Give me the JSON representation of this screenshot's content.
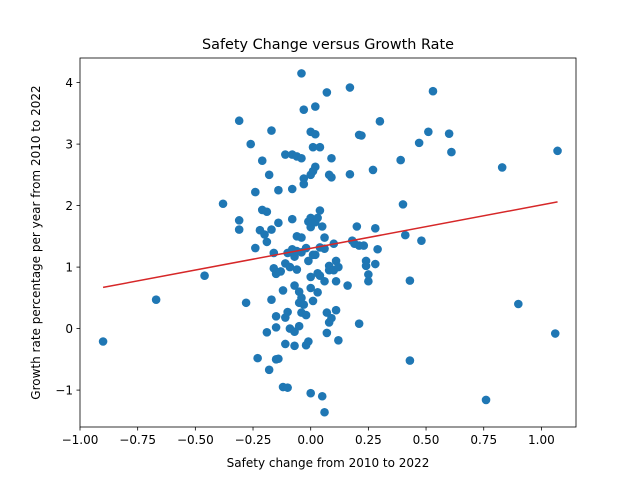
{
  "chart_data": {
    "type": "scatter",
    "title": "Safety Change versus Growth Rate",
    "xlabel": "Safety change from 2010 to 2022",
    "ylabel": "Growth rate percentage per year from 2010 to 2022",
    "xlim": [
      -1.0,
      1.15
    ],
    "ylim": [
      -1.6,
      4.4
    ],
    "xticks": [
      -1.0,
      -0.75,
      -0.5,
      -0.25,
      0.0,
      0.25,
      0.5,
      0.75,
      1.0
    ],
    "xtick_labels": [
      "−1.00",
      "−0.75",
      "−0.50",
      "−0.25",
      "0.00",
      "0.25",
      "0.50",
      "0.75",
      "1.00"
    ],
    "yticks": [
      -1,
      0,
      1,
      2,
      3,
      4
    ],
    "ytick_labels": [
      "−1",
      "0",
      "1",
      "2",
      "3",
      "4"
    ],
    "grid": false,
    "point_color": "#1f77b4",
    "trend_color": "#d62728",
    "trendline": {
      "x": [
        -0.9,
        1.07
      ],
      "y": [
        0.67,
        2.06
      ]
    },
    "points": [
      [
        -0.9,
        -0.21
      ],
      [
        -0.67,
        0.47
      ],
      [
        -0.46,
        0.86
      ],
      [
        -0.38,
        2.03
      ],
      [
        -0.31,
        3.38
      ],
      [
        -0.31,
        1.76
      ],
      [
        -0.31,
        1.61
      ],
      [
        -0.28,
        0.42
      ],
      [
        -0.26,
        3.0
      ],
      [
        -0.24,
        2.22
      ],
      [
        -0.24,
        1.31
      ],
      [
        -0.23,
        -0.48
      ],
      [
        -0.22,
        1.6
      ],
      [
        -0.21,
        2.73
      ],
      [
        -0.21,
        1.93
      ],
      [
        -0.2,
        1.53
      ],
      [
        -0.19,
        1.9
      ],
      [
        -0.19,
        1.41
      ],
      [
        -0.19,
        -0.06
      ],
      [
        -0.18,
        -0.67
      ],
      [
        -0.18,
        2.5
      ],
      [
        -0.17,
        3.22
      ],
      [
        -0.17,
        1.61
      ],
      [
        -0.17,
        0.47
      ],
      [
        -0.16,
        1.23
      ],
      [
        -0.16,
        0.98
      ],
      [
        -0.15,
        0.89
      ],
      [
        -0.15,
        0.2
      ],
      [
        -0.15,
        0.02
      ],
      [
        -0.15,
        -0.5
      ],
      [
        -0.14,
        1.72
      ],
      [
        -0.14,
        2.25
      ],
      [
        -0.14,
        -0.49
      ],
      [
        -0.13,
        0.93
      ],
      [
        -0.12,
        0.62
      ],
      [
        -0.12,
        -0.95
      ],
      [
        -0.11,
        2.83
      ],
      [
        -0.11,
        1.06
      ],
      [
        -0.11,
        0.18
      ],
      [
        -0.11,
        -0.25
      ],
      [
        -0.1,
        1.23
      ],
      [
        -0.1,
        0.27
      ],
      [
        -0.1,
        -0.96
      ],
      [
        -0.09,
        1.0
      ],
      [
        -0.09,
        0.0
      ],
      [
        -0.08,
        2.27
      ],
      [
        -0.08,
        2.83
      ],
      [
        -0.08,
        1.78
      ],
      [
        -0.08,
        1.29
      ],
      [
        -0.07,
        1.17
      ],
      [
        -0.07,
        0.7
      ],
      [
        -0.07,
        -0.05
      ],
      [
        -0.07,
        -0.28
      ],
      [
        -0.06,
        2.8
      ],
      [
        -0.06,
        1.5
      ],
      [
        -0.06,
        1.26
      ],
      [
        -0.06,
        0.96
      ],
      [
        -0.05,
        0.6
      ],
      [
        -0.05,
        0.42
      ],
      [
        -0.05,
        0.04
      ],
      [
        -0.04,
        4.15
      ],
      [
        -0.04,
        2.77
      ],
      [
        -0.04,
        1.48
      ],
      [
        -0.04,
        1.24
      ],
      [
        -0.04,
        0.5
      ],
      [
        -0.04,
        0.26
      ],
      [
        -0.03,
        3.56
      ],
      [
        -0.03,
        2.44
      ],
      [
        -0.03,
        2.35
      ],
      [
        -0.03,
        0.39
      ],
      [
        -0.02,
        1.31
      ],
      [
        -0.02,
        0.22
      ],
      [
        -0.02,
        -0.27
      ],
      [
        -0.01,
        1.74
      ],
      [
        -0.01,
        1.1
      ],
      [
        -0.01,
        -0.21
      ],
      [
        0.0,
        3.2
      ],
      [
        0.0,
        2.5
      ],
      [
        0.0,
        1.8
      ],
      [
        0.0,
        1.65
      ],
      [
        0.0,
        0.84
      ],
      [
        0.0,
        0.66
      ],
      [
        0.0,
        -1.05
      ],
      [
        0.01,
        2.95
      ],
      [
        0.01,
        2.56
      ],
      [
        0.01,
        1.74
      ],
      [
        0.01,
        1.2
      ],
      [
        0.01,
        0.45
      ],
      [
        0.02,
        3.61
      ],
      [
        0.02,
        3.16
      ],
      [
        0.02,
        2.63
      ],
      [
        0.02,
        1.73
      ],
      [
        0.02,
        1.2
      ],
      [
        0.03,
        1.8
      ],
      [
        0.03,
        0.9
      ],
      [
        0.03,
        0.59
      ],
      [
        0.04,
        2.95
      ],
      [
        0.04,
        1.92
      ],
      [
        0.04,
        1.32
      ],
      [
        0.04,
        0.86
      ],
      [
        0.05,
        1.66
      ],
      [
        0.05,
        -1.1
      ],
      [
        0.06,
        1.48
      ],
      [
        0.06,
        1.3
      ],
      [
        0.06,
        0.77
      ],
      [
        0.06,
        -1.36
      ],
      [
        0.07,
        3.84
      ],
      [
        0.07,
        0.26
      ],
      [
        0.07,
        -0.07
      ],
      [
        0.08,
        2.5
      ],
      [
        0.08,
        1.02
      ],
      [
        0.08,
        0.95
      ],
      [
        0.08,
        0.1
      ],
      [
        0.09,
        2.77
      ],
      [
        0.09,
        2.46
      ],
      [
        0.09,
        0.17
      ],
      [
        0.1,
        1.38
      ],
      [
        0.1,
        0.95
      ],
      [
        0.11,
        1.1
      ],
      [
        0.11,
        0.77
      ],
      [
        0.11,
        0.3
      ],
      [
        0.12,
        1.0
      ],
      [
        0.12,
        -0.19
      ],
      [
        0.16,
        0.7
      ],
      [
        0.17,
        3.92
      ],
      [
        0.17,
        2.51
      ],
      [
        0.18,
        1.43
      ],
      [
        0.19,
        1.38
      ],
      [
        0.2,
        1.66
      ],
      [
        0.21,
        3.15
      ],
      [
        0.21,
        1.35
      ],
      [
        0.21,
        0.08
      ],
      [
        0.22,
        3.14
      ],
      [
        0.23,
        1.35
      ],
      [
        0.24,
        1.1
      ],
      [
        0.24,
        1.02
      ],
      [
        0.25,
        0.77
      ],
      [
        0.25,
        0.88
      ],
      [
        0.27,
        2.58
      ],
      [
        0.28,
        1.63
      ],
      [
        0.28,
        1.05
      ],
      [
        0.29,
        1.29
      ],
      [
        0.3,
        3.37
      ],
      [
        0.39,
        2.74
      ],
      [
        0.4,
        2.02
      ],
      [
        0.41,
        1.52
      ],
      [
        0.43,
        -0.52
      ],
      [
        0.43,
        0.78
      ],
      [
        0.47,
        3.02
      ],
      [
        0.48,
        1.43
      ],
      [
        0.51,
        3.2
      ],
      [
        0.53,
        3.86
      ],
      [
        0.6,
        3.17
      ],
      [
        0.61,
        2.87
      ],
      [
        0.76,
        -1.16
      ],
      [
        0.83,
        2.62
      ],
      [
        0.9,
        0.4
      ],
      [
        1.06,
        -0.08
      ],
      [
        1.07,
        2.89
      ]
    ]
  }
}
